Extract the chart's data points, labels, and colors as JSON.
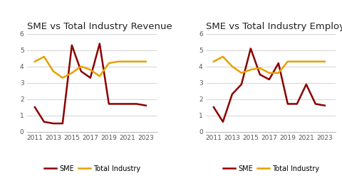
{
  "years": [
    2011,
    2012,
    2013,
    2014,
    2015,
    2016,
    2017,
    2018,
    2019,
    2020,
    2021,
    2022,
    2023
  ],
  "revenue": {
    "sme": [
      1.5,
      0.6,
      0.5,
      0.5,
      5.3,
      3.7,
      3.3,
      5.4,
      1.7,
      1.7,
      1.7,
      1.7,
      1.6
    ],
    "total": [
      4.3,
      4.6,
      3.7,
      3.3,
      3.6,
      4.0,
      3.8,
      3.4,
      4.2,
      4.3,
      4.3,
      4.3,
      4.3
    ]
  },
  "employment": {
    "sme": [
      1.5,
      0.6,
      2.3,
      2.9,
      5.1,
      3.5,
      3.2,
      4.2,
      1.7,
      1.7,
      2.9,
      1.7,
      1.6
    ],
    "total": [
      4.3,
      4.6,
      4.0,
      3.6,
      3.8,
      3.9,
      3.6,
      3.6,
      4.3,
      4.3,
      4.3,
      4.3,
      4.3
    ]
  },
  "title_revenue": "SME vs Total Industry Revenue",
  "title_employment": "SME vs Total Industry Employment",
  "sme_color": "#8B0000",
  "total_color": "#E8A000",
  "sme_label": "SME",
  "total_label": "Total Industry",
  "ylim": [
    0,
    6
  ],
  "yticks": [
    0,
    1,
    2,
    3,
    4,
    5,
    6
  ],
  "xtick_years": [
    2011,
    2013,
    2015,
    2017,
    2019,
    2021,
    2023
  ],
  "background_color": "#ffffff",
  "line_width": 1.8,
  "title_fontsize": 9.5,
  "tick_fontsize": 6.5,
  "legend_fontsize": 7.0
}
